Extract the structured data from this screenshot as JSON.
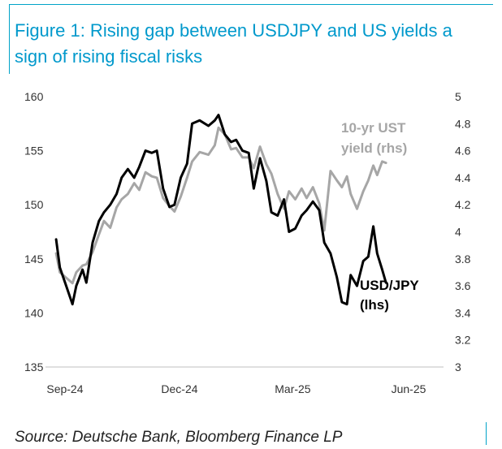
{
  "title": "Figure 1: Rising gap between USDJPY and US yields a sign of rising fiscal risks",
  "source": "Source: Deutsche Bank, Bloomberg Finance LP",
  "colors": {
    "accent": "#0099cc",
    "usdjpy": "#000000",
    "ust": "#a6a6a6"
  },
  "chart_data": {
    "type": "line",
    "title": "Figure 1: Rising gap between USDJPY and US yields a sign of rising fiscal risks",
    "grid": false,
    "x_ticks": [
      "Sep-24",
      "Dec-24",
      "Mar-25",
      "Jun-25"
    ],
    "xlim": [
      "2024-09-01",
      "2025-06-30"
    ],
    "y_left": {
      "lim": [
        135,
        160
      ],
      "ticks": [
        135,
        140,
        145,
        150,
        155,
        160
      ]
    },
    "y_right": {
      "lim": [
        3,
        5
      ],
      "ticks": [
        3,
        3.2,
        3.4,
        3.6,
        3.8,
        4,
        4.2,
        4.4,
        4.6,
        4.8,
        5
      ],
      "tick_labels": [
        "3",
        "3.2",
        "3.4",
        "3.6",
        "3.8",
        "4",
        "4.2",
        "4.4",
        "4.6",
        "4.8",
        "5"
      ]
    },
    "series": [
      {
        "name": "USD/JPY (lhs)",
        "label_lines": [
          "USD/JPY",
          "(lhs)"
        ],
        "axis": "left",
        "x": [
          "2024-09-03",
          "2024-09-06",
          "2024-09-11",
          "2024-09-16",
          "2024-09-19",
          "2024-09-24",
          "2024-09-27",
          "2024-10-02",
          "2024-10-07",
          "2024-10-11",
          "2024-10-16",
          "2024-10-21",
          "2024-10-25",
          "2024-10-30",
          "2024-11-04",
          "2024-11-08",
          "2024-11-13",
          "2024-11-18",
          "2024-11-22",
          "2024-11-27",
          "2024-12-02",
          "2024-12-06",
          "2024-12-11",
          "2024-12-16",
          "2024-12-20",
          "2024-12-26",
          "2025-01-02",
          "2025-01-07",
          "2025-01-10",
          "2025-01-15",
          "2025-01-20",
          "2025-01-24",
          "2025-01-29",
          "2025-02-03",
          "2025-02-07",
          "2025-02-12",
          "2025-02-17",
          "2025-02-21",
          "2025-02-26",
          "2025-03-03",
          "2025-03-07",
          "2025-03-12",
          "2025-03-17",
          "2025-03-21",
          "2025-03-26",
          "2025-03-31",
          "2025-04-04",
          "2025-04-09",
          "2025-04-14",
          "2025-04-18",
          "2025-04-22",
          "2025-04-25",
          "2025-04-30",
          "2025-05-05",
          "2025-05-09",
          "2025-05-13",
          "2025-05-16",
          "2025-05-20",
          "2025-05-23"
        ],
        "values": [
          146.8,
          144.2,
          142.5,
          140.8,
          142.5,
          144.0,
          142.8,
          146.5,
          148.5,
          149.3,
          150.0,
          151.0,
          152.5,
          153.3,
          152.5,
          153.5,
          155.0,
          154.8,
          155.0,
          151.5,
          149.8,
          150.0,
          152.5,
          153.8,
          157.5,
          157.8,
          157.3,
          157.8,
          158.3,
          156.5,
          155.8,
          156.0,
          155.0,
          154.8,
          151.5,
          154.3,
          152.2,
          149.3,
          149.0,
          150.5,
          147.5,
          147.8,
          149.0,
          149.5,
          150.3,
          149.5,
          146.5,
          145.5,
          143.3,
          141.0,
          140.8,
          143.5,
          142.5,
          144.8,
          145.2,
          148.0,
          145.5,
          144.0,
          142.8
        ]
      },
      {
        "name": "10-yr UST yield (rhs)",
        "label_lines": [
          "10-yr UST",
          "yield (rhs)"
        ],
        "axis": "right",
        "x": [
          "2024-09-03",
          "2024-09-06",
          "2024-09-11",
          "2024-09-16",
          "2024-09-19",
          "2024-09-24",
          "2024-09-27",
          "2024-10-02",
          "2024-10-07",
          "2024-10-11",
          "2024-10-16",
          "2024-10-21",
          "2024-10-25",
          "2024-10-30",
          "2024-11-04",
          "2024-11-08",
          "2024-11-13",
          "2024-11-18",
          "2024-11-22",
          "2024-11-27",
          "2024-12-02",
          "2024-12-06",
          "2024-12-11",
          "2024-12-16",
          "2024-12-20",
          "2024-12-26",
          "2025-01-02",
          "2025-01-07",
          "2025-01-10",
          "2025-01-15",
          "2025-01-20",
          "2025-01-24",
          "2025-01-29",
          "2025-02-03",
          "2025-02-07",
          "2025-02-12",
          "2025-02-17",
          "2025-02-21",
          "2025-02-26",
          "2025-03-03",
          "2025-03-07",
          "2025-03-12",
          "2025-03-17",
          "2025-03-21",
          "2025-03-26",
          "2025-03-31",
          "2025-04-04",
          "2025-04-09",
          "2025-04-14",
          "2025-04-18",
          "2025-04-22",
          "2025-04-25",
          "2025-04-30",
          "2025-05-05",
          "2025-05-09",
          "2025-05-13",
          "2025-05-16",
          "2025-05-20",
          "2025-05-23"
        ],
        "values": [
          3.84,
          3.7,
          3.66,
          3.62,
          3.7,
          3.75,
          3.76,
          3.85,
          3.98,
          4.08,
          4.03,
          4.18,
          4.24,
          4.28,
          4.36,
          4.31,
          4.44,
          4.41,
          4.4,
          4.25,
          4.19,
          4.15,
          4.26,
          4.4,
          4.52,
          4.59,
          4.57,
          4.64,
          4.77,
          4.72,
          4.61,
          4.62,
          4.55,
          4.55,
          4.47,
          4.63,
          4.5,
          4.43,
          4.28,
          4.17,
          4.3,
          4.24,
          4.32,
          4.25,
          4.33,
          4.21,
          4.01,
          4.45,
          4.38,
          4.33,
          4.41,
          4.28,
          4.17,
          4.3,
          4.38,
          4.49,
          4.42,
          4.52,
          4.51
        ]
      }
    ]
  }
}
